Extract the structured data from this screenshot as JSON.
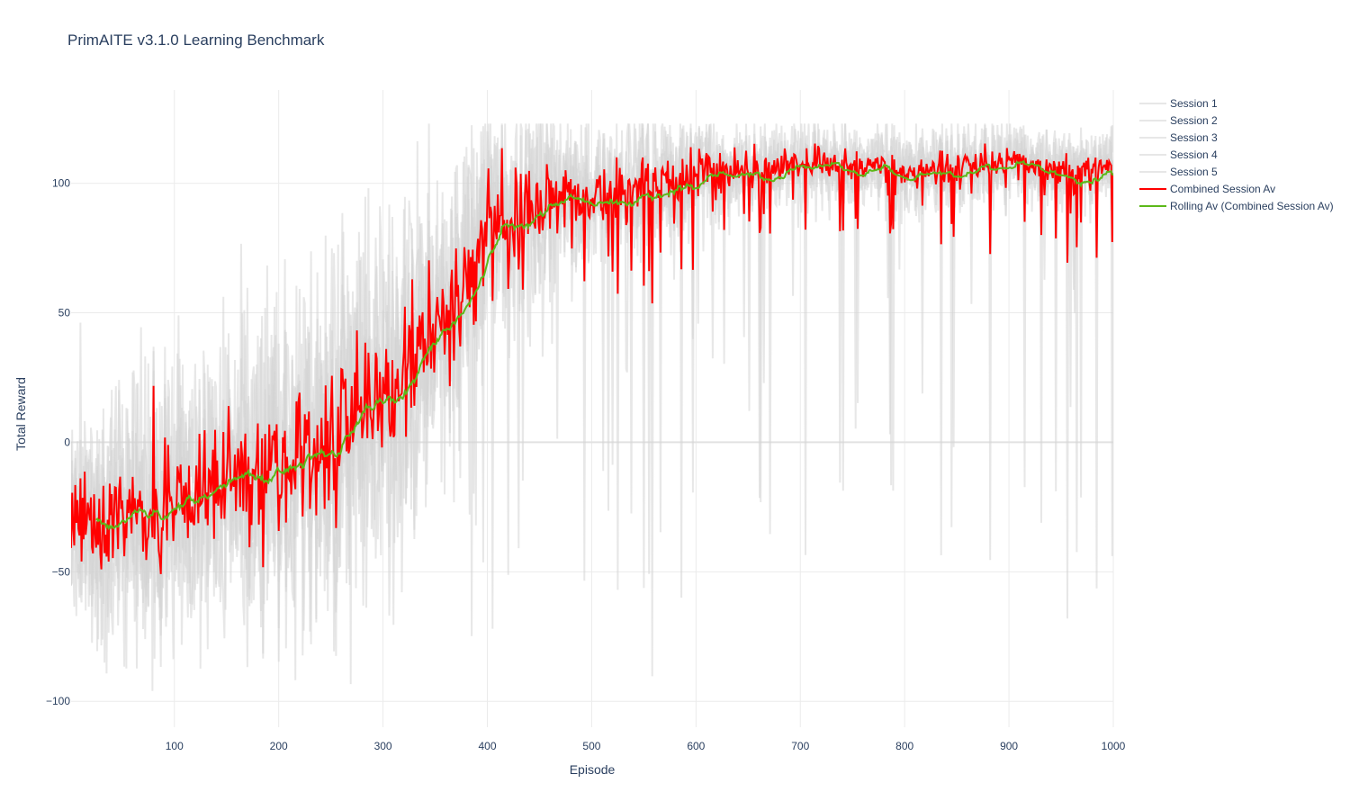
{
  "chart_data": {
    "type": "line",
    "title": "PrimAITE v3.1.0 Learning Benchmark",
    "xlabel": "Episode",
    "ylabel": "Total Reward",
    "xlim": [
      1,
      1000
    ],
    "ylim": [
      -110,
      136
    ],
    "xticks": [
      100,
      200,
      300,
      400,
      500,
      600,
      700,
      800,
      900,
      1000
    ],
    "yticks": [
      -100,
      -50,
      0,
      50,
      100
    ],
    "ytick_labels": [
      "−100",
      "−50",
      "0",
      "50",
      "100"
    ],
    "grid": true,
    "legend_position": "right",
    "series": [
      {
        "name": "Session 1",
        "color": "#d3d3d3",
        "kind": "session",
        "seed": 11
      },
      {
        "name": "Session 2",
        "color": "#d3d3d3",
        "kind": "session",
        "seed": 23
      },
      {
        "name": "Session 3",
        "color": "#d3d3d3",
        "kind": "session",
        "seed": 37
      },
      {
        "name": "Session 4",
        "color": "#d3d3d3",
        "kind": "session",
        "seed": 41
      },
      {
        "name": "Session 5",
        "color": "#d3d3d3",
        "kind": "session",
        "seed": 59
      },
      {
        "name": "Combined Session Av",
        "color": "#ff0000",
        "kind": "average"
      },
      {
        "name": "Rolling Av (Combined Session Av)",
        "color": "#5cb919",
        "kind": "rolling",
        "window": 25
      }
    ],
    "trend": {
      "x": [
        1,
        50,
        100,
        150,
        200,
        250,
        300,
        350,
        400,
        450,
        500,
        550,
        600,
        650,
        700,
        750,
        800,
        850,
        900,
        950,
        1000
      ],
      "y": [
        -33,
        -28,
        -23,
        -16,
        -13,
        -3,
        17,
        45,
        82,
        93,
        96,
        99,
        106,
        105,
        109,
        108,
        104,
        106,
        108,
        105,
        106
      ]
    },
    "session_noise": [
      {
        "x": 1,
        "sd": 20
      },
      {
        "x": 200,
        "sd": 32
      },
      {
        "x": 300,
        "sd": 36
      },
      {
        "x": 380,
        "sd": 26
      },
      {
        "x": 500,
        "sd": 14
      },
      {
        "x": 650,
        "sd": 8
      },
      {
        "x": 1000,
        "sd": 7
      }
    ]
  }
}
